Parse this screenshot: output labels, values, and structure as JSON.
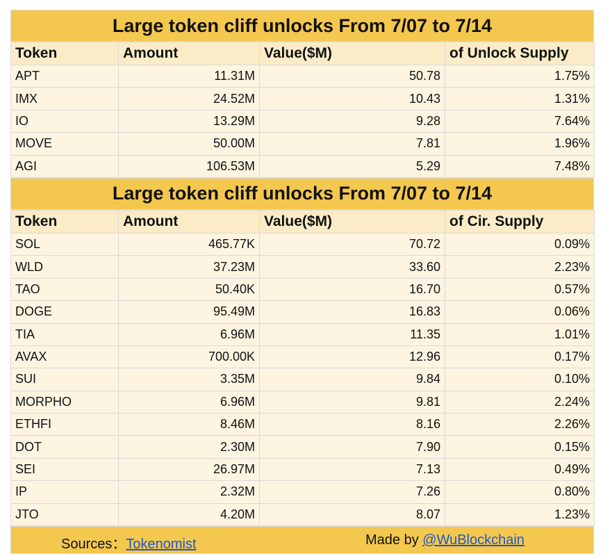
{
  "table1": {
    "title": "Large token cliff unlocks From  7/07 to 7/14",
    "headers": [
      "Token",
      "Amount",
      "Value($M)",
      "of Unlock Supply"
    ],
    "rows": [
      [
        "APT",
        "11.31M",
        "50.78",
        "1.75%"
      ],
      [
        "IMX",
        "24.52M",
        "10.43",
        "1.31%"
      ],
      [
        "IO",
        "13.29M",
        "9.28",
        "7.64%"
      ],
      [
        "MOVE",
        "50.00M",
        "7.81",
        "1.96%"
      ],
      [
        "AGI",
        "106.53M",
        "5.29",
        "7.48%"
      ]
    ]
  },
  "table2": {
    "title": "Large token cliff unlocks From  7/07 to 7/14",
    "headers": [
      "Token",
      "Amount",
      "Value($M)",
      "of Cir. Supply"
    ],
    "rows": [
      [
        "SOL",
        "465.77K",
        "70.72",
        "0.09%"
      ],
      [
        "WLD",
        "37.23M",
        "33.60",
        "2.23%"
      ],
      [
        "TAO",
        "50.40K",
        "16.70",
        "0.57%"
      ],
      [
        "DOGE",
        "95.49M",
        "16.83",
        "0.06%"
      ],
      [
        "TIA",
        "6.96M",
        "11.35",
        "1.01%"
      ],
      [
        "AVAX",
        "700.00K",
        "12.96",
        "0.17%"
      ],
      [
        "SUI",
        "3.35M",
        "9.84",
        "0.10%"
      ],
      [
        "MORPHO",
        "6.96M",
        "9.81",
        "2.24%"
      ],
      [
        "ETHFI",
        "8.46M",
        "8.16",
        "2.26%"
      ],
      [
        "DOT",
        "2.30M",
        "7.90",
        "0.15%"
      ],
      [
        "SEI",
        "26.97M",
        "7.13",
        "0.49%"
      ],
      [
        "IP",
        "2.32M",
        "7.26",
        "0.80%"
      ],
      [
        "JTO",
        "4.20M",
        "8.07",
        "1.23%"
      ]
    ]
  },
  "footer": {
    "sources_label": "Sources：",
    "sources_link": "Tokenomist",
    "made_by_label": "Made by ",
    "made_by_link": "@WuBlockchain"
  }
}
